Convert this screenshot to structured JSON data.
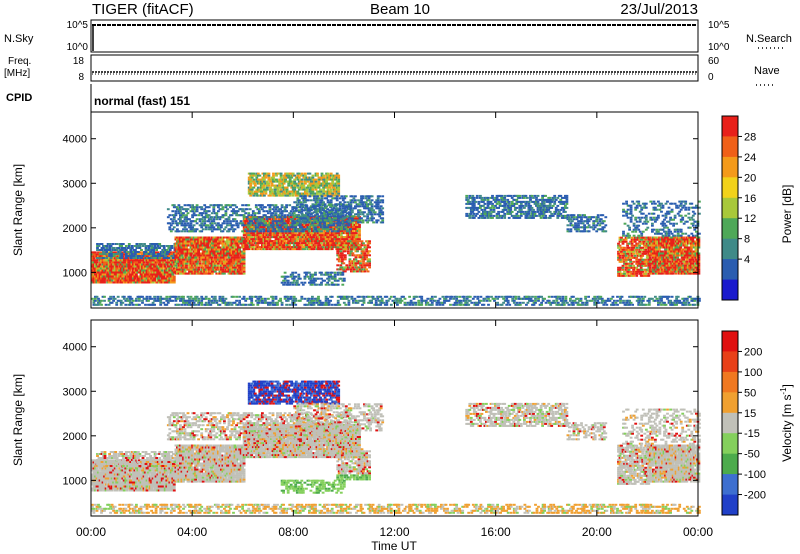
{
  "header": {
    "station": "TIGER (fitACF)",
    "beam": "Beam 10",
    "date": "23/Jul/2013"
  },
  "strip_panels": {
    "nsky_label": "N.Sky",
    "nsearch_label": "N.Search",
    "nsky_ticks": [
      "10^5",
      "10^0"
    ],
    "nsearch_ticks": [
      "10^5",
      "10^0"
    ],
    "freq_label": "Freq.",
    "freq_unit": "[MHz]",
    "freq_ticks": [
      "18",
      "8"
    ],
    "nave_label": "Nave",
    "nave_ticks": [
      "60",
      "0"
    ],
    "cpid_label": "CPID",
    "cpid_text": "normal (fast) 151"
  },
  "chart_data": [
    {
      "type": "heatmap",
      "name": "power",
      "ylabel": "Slant Range [km]",
      "ylim": [
        200,
        4600
      ],
      "yticks": [
        "1000",
        "2000",
        "3000",
        "4000"
      ],
      "xlim": [
        "00:00",
        "24:00"
      ],
      "colorbar_label": "Power [dB]",
      "colorbar_ticks": [
        "4",
        "8",
        "12",
        "16",
        "20",
        "24",
        "28"
      ],
      "colors": [
        "#1a1acd",
        "#2a5db0",
        "#3f8a88",
        "#4ea858",
        "#a8c83a",
        "#f2d21a",
        "#f49a1a",
        "#f06018",
        "#e8201a"
      ]
    },
    {
      "type": "heatmap",
      "name": "velocity",
      "ylabel": "Slant Range [km]",
      "ylim": [
        200,
        4600
      ],
      "yticks": [
        "1000",
        "2000",
        "3000",
        "4000"
      ],
      "xlim": [
        "00:00",
        "24:00"
      ],
      "xlabel": "Time UT",
      "xticks": [
        "00:00",
        "04:00",
        "08:00",
        "12:00",
        "16:00",
        "20:00",
        "00:00"
      ],
      "colorbar_label": "Velocity [m s",
      "colorbar_label_sup": "-1",
      "colorbar_label_end": "]",
      "colorbar_ticks": [
        "200",
        "100",
        "50",
        "15",
        "-15",
        "-50",
        "-100",
        "-200"
      ],
      "colors": [
        "#2040c8",
        "#3d6fd0",
        "#4cab4c",
        "#84d05c",
        "#c0c0b8",
        "#f0a030",
        "#f07820",
        "#e84018",
        "#e01010"
      ]
    }
  ]
}
